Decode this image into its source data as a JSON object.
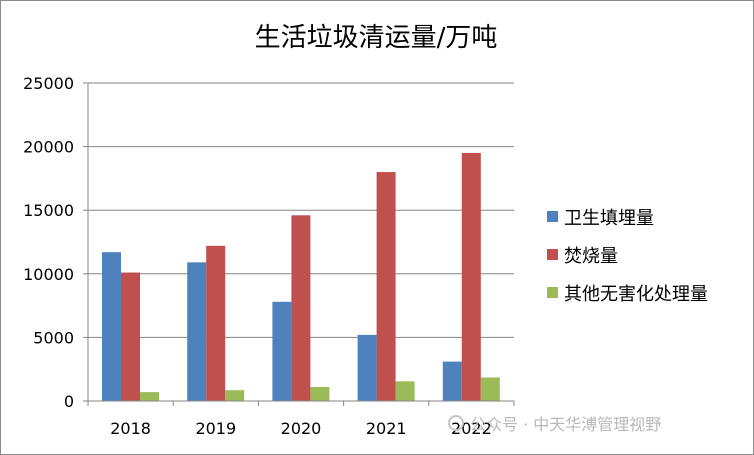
{
  "chart_data": {
    "type": "bar",
    "title": "生活垃圾清运量/万吨",
    "categories": [
      "2018",
      "2019",
      "2020",
      "2021",
      "2022"
    ],
    "series": [
      {
        "name": "卫生填埋量",
        "color": "#4f81bd",
        "values": [
          11700,
          10900,
          7800,
          5200,
          3100
        ]
      },
      {
        "name": "焚烧量",
        "color": "#c0504d",
        "values": [
          10100,
          12200,
          14600,
          18000,
          19500
        ]
      },
      {
        "name": "其他无害化处理量",
        "color": "#9bbb59",
        "values": [
          700,
          850,
          1100,
          1550,
          1850
        ]
      }
    ],
    "ylim": [
      0,
      25000
    ],
    "yticks": [
      0,
      5000,
      10000,
      15000,
      20000,
      25000
    ],
    "grid": true,
    "legend": "right",
    "xlabel": "",
    "ylabel": ""
  },
  "watermark": "公众号 · 中天华溥管理视野"
}
